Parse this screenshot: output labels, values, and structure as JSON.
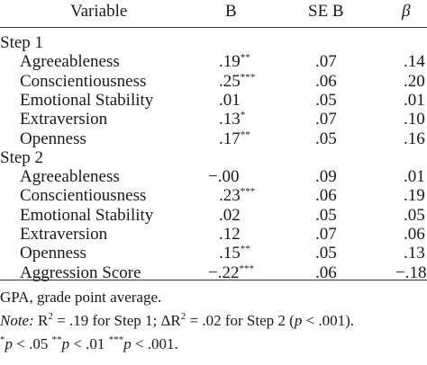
{
  "header": {
    "variable": "Variable",
    "b": "B",
    "se_b": "SE B",
    "beta": "β"
  },
  "steps": [
    {
      "label": "Step 1",
      "rows": [
        {
          "variable": "Agreeableness",
          "b": ".19",
          "b_sig": "**",
          "se": ".07",
          "beta": ".14"
        },
        {
          "variable": "Conscientiousness",
          "b": ".25",
          "b_sig": "***",
          "se": ".06",
          "beta": ".20"
        },
        {
          "variable": "Emotional Stability",
          "b": ".01",
          "b_sig": "",
          "se": ".05",
          "beta": ".01"
        },
        {
          "variable": "Extraversion",
          "b": ".13",
          "b_sig": "*",
          "se": ".07",
          "beta": ".10"
        },
        {
          "variable": "Openness",
          "b": ".17",
          "b_sig": "**",
          "se": ".05",
          "beta": ".16"
        }
      ]
    },
    {
      "label": "Step 2",
      "rows": [
        {
          "variable": "Agreeableness",
          "b": "−.00",
          "b_sig": "",
          "se": ".09",
          "beta": ".01"
        },
        {
          "variable": "Conscientiousness",
          "b": ".23",
          "b_sig": "***",
          "se": ".06",
          "beta": ".19"
        },
        {
          "variable": "Emotional Stability",
          "b": ".02",
          "b_sig": "",
          "se": ".05",
          "beta": ".05"
        },
        {
          "variable": "Extraversion",
          "b": ".12",
          "b_sig": "",
          "se": ".07",
          "beta": ".06"
        },
        {
          "variable": "Openness",
          "b": ".15",
          "b_sig": "**",
          "se": ".05",
          "beta": ".13"
        },
        {
          "variable": "Aggression Score",
          "b": "−.22",
          "b_sig": "***",
          "se": ".06",
          "beta": "−.18"
        }
      ]
    }
  ],
  "notes": {
    "gpa": "GPA, grade point average.",
    "note_label": "Note:",
    "note_text_1": " R",
    "note_sup_1": "2",
    "note_text_2": " = .19 for Step 1; ΔR",
    "note_sup_2": "2",
    "note_text_3": " = .02 for Step 2 (",
    "note_p": "p",
    "note_text_4": " < .001).",
    "sig_1_mark": "*",
    "sig_1_p": "p",
    "sig_1_text": " < .05 ",
    "sig_2_mark": "**",
    "sig_2_p": "p",
    "sig_2_text": " < .01 ",
    "sig_3_mark": "***",
    "sig_3_p": "p",
    "sig_3_text": " < .001."
  }
}
